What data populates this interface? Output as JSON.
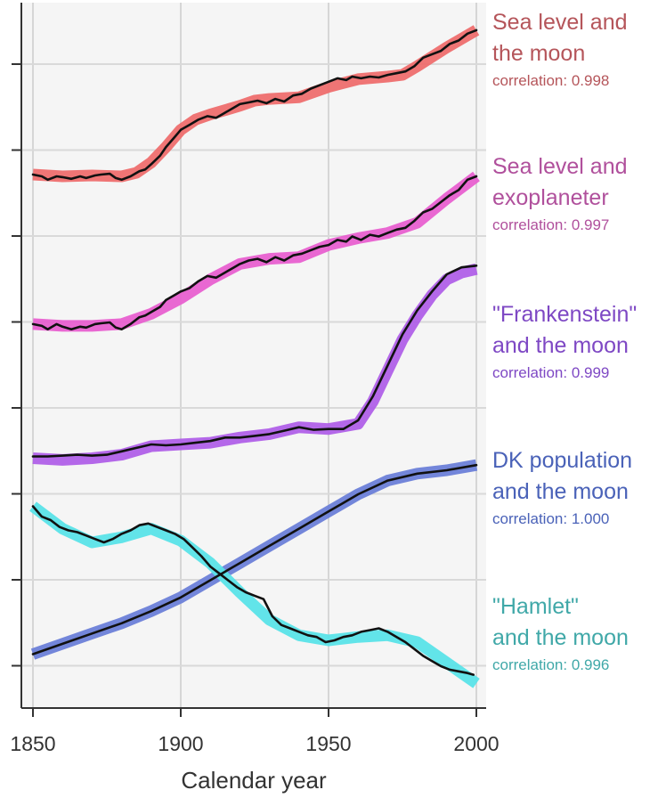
{
  "chart_data": {
    "type": "line",
    "xlabel": "Calendar year",
    "ylabel": "",
    "xlim": [
      1849,
      2003
    ],
    "x_ticks": [
      1850,
      1900,
      1950,
      2000
    ],
    "y_ticks_count": 8,
    "grid": true,
    "legend": "right-side direct labels",
    "series": [
      {
        "name": "Sea level and\nthe moon",
        "correlation_label": "correlation: 0.998",
        "color": "#b5555a",
        "band_color": "#ee6e6e",
        "band": [
          [
            1850,
            1.72
          ],
          [
            1860,
            1.7
          ],
          [
            1870,
            1.71
          ],
          [
            1880,
            1.7
          ],
          [
            1885,
            1.74
          ],
          [
            1890,
            1.86
          ],
          [
            1895,
            2.04
          ],
          [
            1900,
            2.24
          ],
          [
            1905,
            2.36
          ],
          [
            1910,
            2.42
          ],
          [
            1920,
            2.52
          ],
          [
            1925,
            2.58
          ],
          [
            1930,
            2.6
          ],
          [
            1940,
            2.62
          ],
          [
            1950,
            2.74
          ],
          [
            1960,
            2.83
          ],
          [
            1970,
            2.86
          ],
          [
            1975,
            2.88
          ],
          [
            1980,
            2.98
          ],
          [
            1990,
            3.2
          ],
          [
            2000,
            3.4
          ]
        ],
        "values": [
          [
            1850,
            1.72
          ],
          [
            1853,
            1.7
          ],
          [
            1855,
            1.66
          ],
          [
            1858,
            1.7
          ],
          [
            1860,
            1.69
          ],
          [
            1863,
            1.67
          ],
          [
            1866,
            1.7
          ],
          [
            1868,
            1.68
          ],
          [
            1871,
            1.71
          ],
          [
            1873,
            1.72
          ],
          [
            1876,
            1.73
          ],
          [
            1878,
            1.68
          ],
          [
            1880,
            1.66
          ],
          [
            1883,
            1.7
          ],
          [
            1886,
            1.76
          ],
          [
            1888,
            1.78
          ],
          [
            1890,
            1.84
          ],
          [
            1893,
            1.94
          ],
          [
            1895,
            2.04
          ],
          [
            1898,
            2.16
          ],
          [
            1900,
            2.24
          ],
          [
            1903,
            2.3
          ],
          [
            1906,
            2.36
          ],
          [
            1909,
            2.4
          ],
          [
            1912,
            2.38
          ],
          [
            1915,
            2.44
          ],
          [
            1918,
            2.5
          ],
          [
            1920,
            2.54
          ],
          [
            1923,
            2.56
          ],
          [
            1926,
            2.58
          ],
          [
            1929,
            2.55
          ],
          [
            1932,
            2.6
          ],
          [
            1935,
            2.57
          ],
          [
            1938,
            2.64
          ],
          [
            1941,
            2.66
          ],
          [
            1944,
            2.72
          ],
          [
            1947,
            2.76
          ],
          [
            1950,
            2.8
          ],
          [
            1953,
            2.84
          ],
          [
            1956,
            2.82
          ],
          [
            1958,
            2.86
          ],
          [
            1961,
            2.84
          ],
          [
            1964,
            2.86
          ],
          [
            1967,
            2.85
          ],
          [
            1970,
            2.88
          ],
          [
            1973,
            2.9
          ],
          [
            1976,
            2.92
          ],
          [
            1979,
            2.98
          ],
          [
            1982,
            3.08
          ],
          [
            1985,
            3.12
          ],
          [
            1988,
            3.16
          ],
          [
            1991,
            3.24
          ],
          [
            1994,
            3.28
          ],
          [
            1997,
            3.36
          ],
          [
            2000,
            3.4
          ]
        ]
      },
      {
        "name": "Sea level and\nexoplaneter",
        "correlation_label": "correlation: 0.997",
        "color": "#b0509c",
        "band_color": "#e860d0",
        "band": [
          [
            1850,
            -0.02
          ],
          [
            1860,
            -0.04
          ],
          [
            1870,
            -0.04
          ],
          [
            1880,
            -0.02
          ],
          [
            1890,
            0.1
          ],
          [
            1900,
            0.28
          ],
          [
            1910,
            0.5
          ],
          [
            1920,
            0.68
          ],
          [
            1930,
            0.74
          ],
          [
            1940,
            0.76
          ],
          [
            1950,
            0.9
          ],
          [
            1960,
            0.98
          ],
          [
            1970,
            1.04
          ],
          [
            1980,
            1.16
          ],
          [
            1990,
            1.44
          ],
          [
            2000,
            1.7
          ]
        ],
        "values": [
          [
            1850,
            -0.02
          ],
          [
            1853,
            -0.04
          ],
          [
            1855,
            -0.08
          ],
          [
            1858,
            -0.02
          ],
          [
            1860,
            -0.05
          ],
          [
            1863,
            -0.08
          ],
          [
            1866,
            -0.05
          ],
          [
            1868,
            -0.06
          ],
          [
            1871,
            -0.02
          ],
          [
            1873,
            -0.01
          ],
          [
            1876,
            0.0
          ],
          [
            1878,
            -0.06
          ],
          [
            1880,
            -0.08
          ],
          [
            1883,
            -0.02
          ],
          [
            1886,
            0.06
          ],
          [
            1888,
            0.08
          ],
          [
            1890,
            0.12
          ],
          [
            1893,
            0.18
          ],
          [
            1895,
            0.26
          ],
          [
            1898,
            0.32
          ],
          [
            1900,
            0.36
          ],
          [
            1903,
            0.4
          ],
          [
            1906,
            0.48
          ],
          [
            1909,
            0.54
          ],
          [
            1912,
            0.52
          ],
          [
            1915,
            0.58
          ],
          [
            1918,
            0.64
          ],
          [
            1920,
            0.68
          ],
          [
            1923,
            0.72
          ],
          [
            1926,
            0.74
          ],
          [
            1929,
            0.7
          ],
          [
            1932,
            0.76
          ],
          [
            1935,
            0.72
          ],
          [
            1938,
            0.78
          ],
          [
            1941,
            0.8
          ],
          [
            1944,
            0.84
          ],
          [
            1947,
            0.88
          ],
          [
            1950,
            0.9
          ],
          [
            1953,
            0.96
          ],
          [
            1956,
            0.94
          ],
          [
            1958,
            1.0
          ],
          [
            1961,
            0.96
          ],
          [
            1964,
            1.02
          ],
          [
            1967,
            1.0
          ],
          [
            1970,
            1.04
          ],
          [
            1973,
            1.08
          ],
          [
            1976,
            1.1
          ],
          [
            1979,
            1.18
          ],
          [
            1982,
            1.28
          ],
          [
            1985,
            1.32
          ],
          [
            1988,
            1.4
          ],
          [
            1991,
            1.48
          ],
          [
            1994,
            1.54
          ],
          [
            1997,
            1.66
          ],
          [
            2000,
            1.7
          ]
        ]
      },
      {
        "name": "\"Frankenstein\"\nand the moon",
        "correlation_label": "correlation: 0.999",
        "color": "#7e48c4",
        "band_color": "#b060e8",
        "band": [
          [
            1850,
            -1.58
          ],
          [
            1860,
            -1.6
          ],
          [
            1870,
            -1.58
          ],
          [
            1880,
            -1.54
          ],
          [
            1890,
            -1.44
          ],
          [
            1900,
            -1.42
          ],
          [
            1910,
            -1.4
          ],
          [
            1920,
            -1.34
          ],
          [
            1930,
            -1.3
          ],
          [
            1940,
            -1.22
          ],
          [
            1950,
            -1.24
          ],
          [
            1960,
            -1.18
          ],
          [
            1965,
            -0.92
          ],
          [
            1970,
            -0.56
          ],
          [
            1975,
            -0.2
          ],
          [
            1980,
            0.08
          ],
          [
            1985,
            0.32
          ],
          [
            1990,
            0.5
          ],
          [
            1995,
            0.58
          ],
          [
            2000,
            0.62
          ]
        ],
        "values": [
          [
            1850,
            -1.56
          ],
          [
            1855,
            -1.56
          ],
          [
            1860,
            -1.55
          ],
          [
            1865,
            -1.54
          ],
          [
            1870,
            -1.55
          ],
          [
            1875,
            -1.54
          ],
          [
            1880,
            -1.5
          ],
          [
            1885,
            -1.46
          ],
          [
            1890,
            -1.42
          ],
          [
            1895,
            -1.43
          ],
          [
            1900,
            -1.42
          ],
          [
            1905,
            -1.4
          ],
          [
            1910,
            -1.38
          ],
          [
            1915,
            -1.34
          ],
          [
            1920,
            -1.34
          ],
          [
            1925,
            -1.32
          ],
          [
            1930,
            -1.3
          ],
          [
            1935,
            -1.26
          ],
          [
            1940,
            -1.22
          ],
          [
            1945,
            -1.25
          ],
          [
            1950,
            -1.24
          ],
          [
            1955,
            -1.24
          ],
          [
            1960,
            -1.14
          ],
          [
            1965,
            -0.86
          ],
          [
            1970,
            -0.5
          ],
          [
            1975,
            -0.14
          ],
          [
            1980,
            0.14
          ],
          [
            1985,
            0.36
          ],
          [
            1990,
            0.56
          ],
          [
            1995,
            0.64
          ],
          [
            2000,
            0.66
          ]
        ]
      },
      {
        "name": "DK population\nand the moon",
        "correlation_label": "correlation: 1.000",
        "color": "#4a62b8",
        "band_color": "#6b7fd8",
        "band": [
          [
            1850,
            -3.86
          ],
          [
            1860,
            -3.74
          ],
          [
            1870,
            -3.62
          ],
          [
            1880,
            -3.5
          ],
          [
            1890,
            -3.36
          ],
          [
            1900,
            -3.2
          ],
          [
            1910,
            -3.0
          ],
          [
            1920,
            -2.8
          ],
          [
            1930,
            -2.6
          ],
          [
            1940,
            -2.4
          ],
          [
            1950,
            -2.2
          ],
          [
            1960,
            -2.0
          ],
          [
            1970,
            -1.84
          ],
          [
            1980,
            -1.76
          ],
          [
            1990,
            -1.72
          ],
          [
            2000,
            -1.66
          ]
        ],
        "values": [
          [
            1850,
            -3.86
          ],
          [
            1860,
            -3.74
          ],
          [
            1870,
            -3.62
          ],
          [
            1880,
            -3.5
          ],
          [
            1890,
            -3.36
          ],
          [
            1900,
            -3.2
          ],
          [
            1910,
            -3.0
          ],
          [
            1920,
            -2.8
          ],
          [
            1930,
            -2.6
          ],
          [
            1940,
            -2.4
          ],
          [
            1950,
            -2.2
          ],
          [
            1960,
            -2.0
          ],
          [
            1970,
            -1.84
          ],
          [
            1980,
            -1.76
          ],
          [
            1990,
            -1.72
          ],
          [
            2000,
            -1.66
          ]
        ]
      },
      {
        "name": "\"Hamlet\"\nand the moon",
        "correlation_label": "correlation: 0.996",
        "color": "#40a8a8",
        "band_color": "#5ae3e8",
        "band": [
          [
            1850,
            -2.14
          ],
          [
            1860,
            -2.4
          ],
          [
            1870,
            -2.56
          ],
          [
            1880,
            -2.5
          ],
          [
            1890,
            -2.4
          ],
          [
            1900,
            -2.54
          ],
          [
            1910,
            -2.8
          ],
          [
            1920,
            -3.14
          ],
          [
            1930,
            -3.46
          ],
          [
            1940,
            -3.64
          ],
          [
            1950,
            -3.7
          ],
          [
            1960,
            -3.66
          ],
          [
            1970,
            -3.64
          ],
          [
            1980,
            -3.72
          ],
          [
            1990,
            -3.96
          ],
          [
            2000,
            -4.2
          ]
        ],
        "values": [
          [
            1850,
            -2.14
          ],
          [
            1853,
            -2.26
          ],
          [
            1856,
            -2.3
          ],
          [
            1859,
            -2.38
          ],
          [
            1862,
            -2.42
          ],
          [
            1865,
            -2.44
          ],
          [
            1868,
            -2.48
          ],
          [
            1871,
            -2.52
          ],
          [
            1874,
            -2.56
          ],
          [
            1877,
            -2.52
          ],
          [
            1880,
            -2.46
          ],
          [
            1883,
            -2.42
          ],
          [
            1886,
            -2.36
          ],
          [
            1889,
            -2.34
          ],
          [
            1892,
            -2.38
          ],
          [
            1895,
            -2.42
          ],
          [
            1898,
            -2.46
          ],
          [
            1901,
            -2.52
          ],
          [
            1904,
            -2.62
          ],
          [
            1907,
            -2.72
          ],
          [
            1910,
            -2.84
          ],
          [
            1913,
            -2.92
          ],
          [
            1916,
            -3.0
          ],
          [
            1919,
            -3.08
          ],
          [
            1922,
            -3.14
          ],
          [
            1925,
            -3.18
          ],
          [
            1928,
            -3.22
          ],
          [
            1931,
            -3.42
          ],
          [
            1934,
            -3.52
          ],
          [
            1937,
            -3.56
          ],
          [
            1940,
            -3.6
          ],
          [
            1943,
            -3.64
          ],
          [
            1946,
            -3.66
          ],
          [
            1949,
            -3.72
          ],
          [
            1952,
            -3.7
          ],
          [
            1955,
            -3.66
          ],
          [
            1958,
            -3.64
          ],
          [
            1961,
            -3.6
          ],
          [
            1964,
            -3.58
          ],
          [
            1967,
            -3.56
          ],
          [
            1970,
            -3.6
          ],
          [
            1973,
            -3.66
          ],
          [
            1976,
            -3.72
          ],
          [
            1979,
            -3.8
          ],
          [
            1982,
            -3.88
          ],
          [
            1985,
            -3.94
          ],
          [
            1988,
            -4.0
          ],
          [
            1991,
            -4.04
          ],
          [
            1994,
            -4.06
          ],
          [
            1997,
            -4.08
          ],
          [
            1999,
            -4.1
          ]
        ]
      }
    ]
  }
}
